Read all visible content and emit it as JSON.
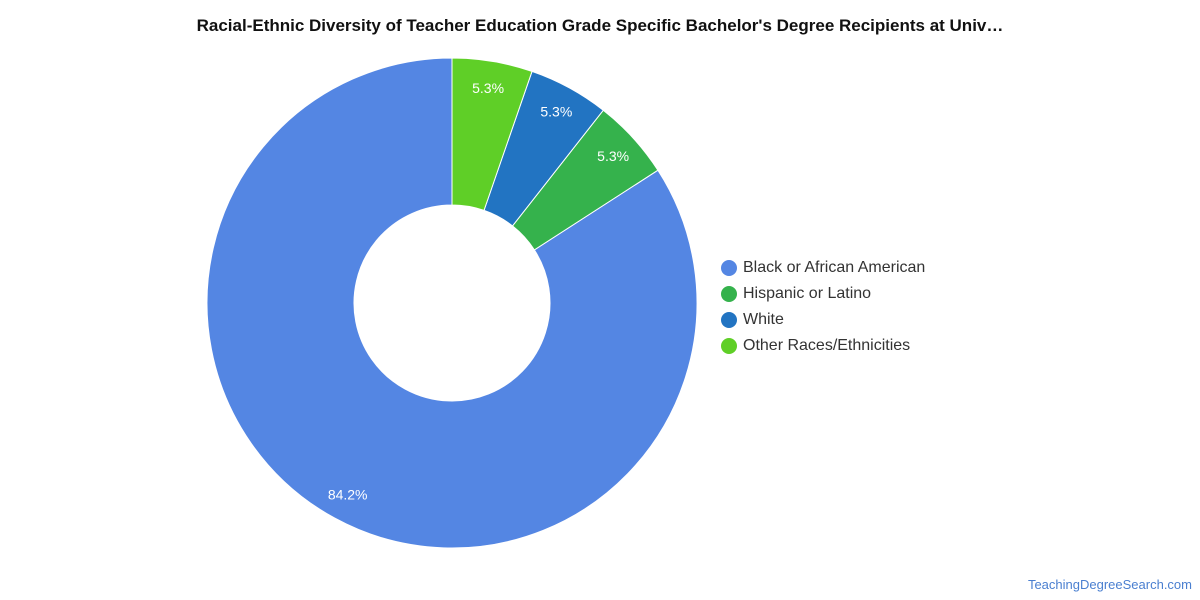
{
  "chart_data": {
    "type": "pie",
    "title": "Racial-Ethnic Diversity of Teacher Education Grade Specific Bachelor's Degree Recipients at Univ…",
    "donut": true,
    "legend_position": "right",
    "slices": [
      {
        "label": "Black or African American",
        "value": 84.2,
        "value_label": "84.2%",
        "color": "#5486e3"
      },
      {
        "label": "Hispanic or Latino",
        "value": 5.3,
        "value_label": "5.3%",
        "color": "#35b24c"
      },
      {
        "label": "White",
        "value": 5.3,
        "value_label": "5.3%",
        "color": "#2274c2"
      },
      {
        "label": "Other Races/Ethnicities",
        "value": 5.3,
        "value_label": "5.3%",
        "color": "#5fcf27"
      }
    ]
  },
  "footer": {
    "source": "TeachingDegreeSearch.com"
  }
}
